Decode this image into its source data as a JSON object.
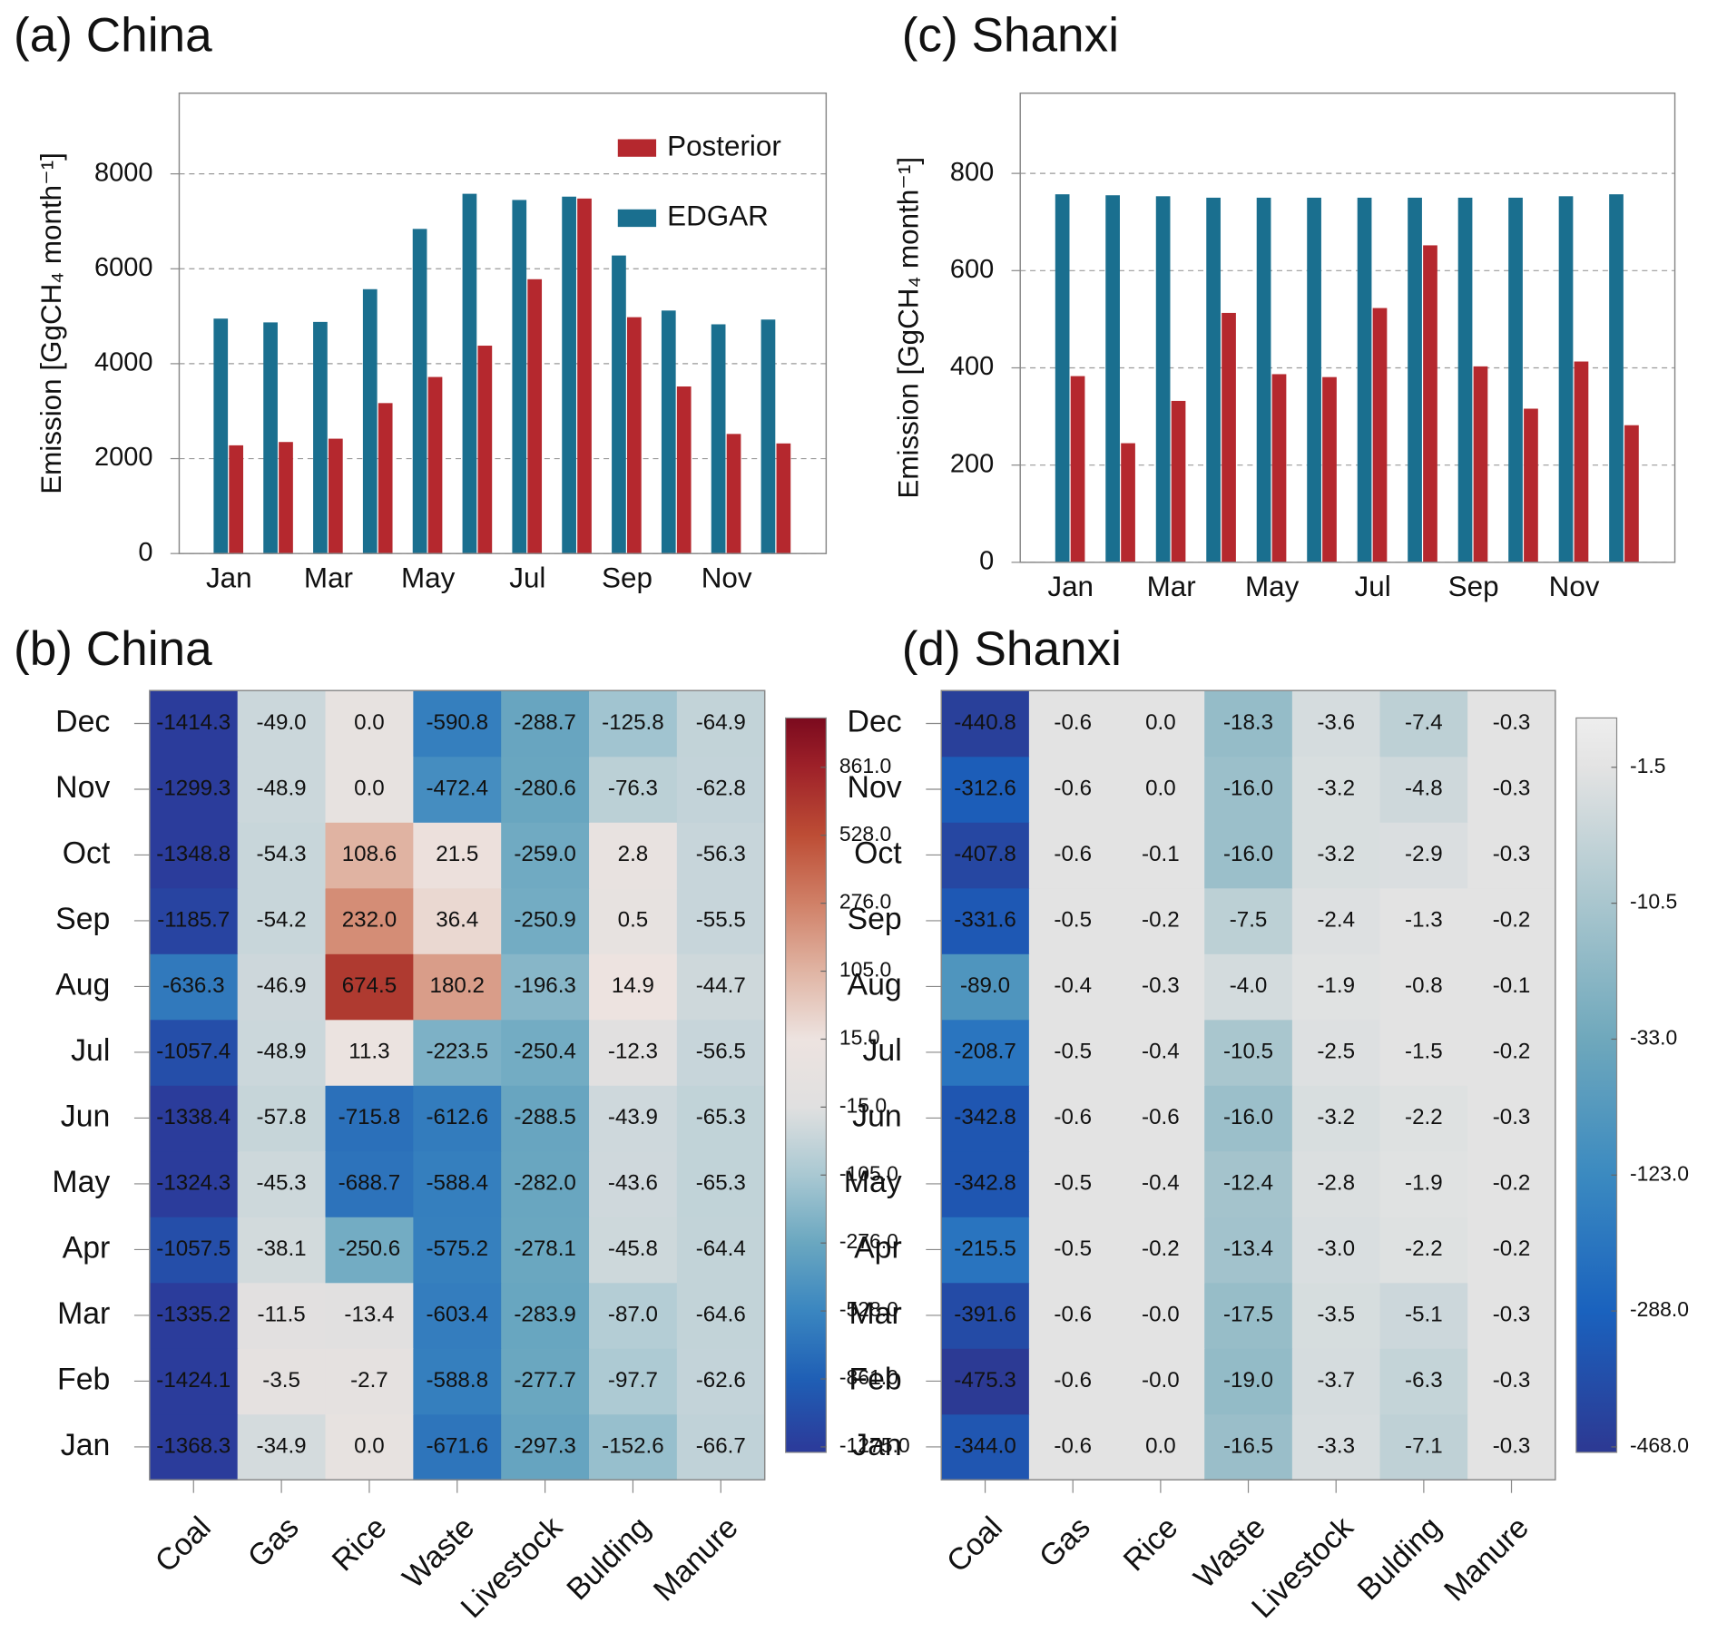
{
  "chart_data": [
    {
      "type": "bar",
      "title": "(a) China",
      "ylabel": "Emission [GgCH₄ month⁻¹]",
      "categories": [
        "Jan",
        null,
        "Mar",
        null,
        "May",
        null,
        "Jul",
        null,
        "Sep",
        null,
        "Nov",
        null
      ],
      "series": [
        {
          "name": "EDGAR",
          "color": "#1a6f8f",
          "values": [
            4950,
            4870,
            4880,
            5570,
            6840,
            7580,
            7450,
            7520,
            6280,
            5120,
            4830,
            4930
          ]
        },
        {
          "name": "Posterior",
          "color": "#b5282e",
          "values": [
            2280,
            2350,
            2420,
            3170,
            3720,
            4380,
            5780,
            7480,
            4980,
            3520,
            2520,
            2320
          ]
        }
      ],
      "ylim": [
        0,
        9700
      ],
      "yticks": [
        0,
        2000,
        4000,
        6000,
        8000
      ],
      "grid": true,
      "legend": "upper right"
    },
    {
      "type": "bar",
      "title": "(c) Shanxi",
      "ylabel": "Emission [GgCH₄ month⁻¹]",
      "categories": [
        "Jan",
        null,
        "Mar",
        null,
        "May",
        null,
        "Jul",
        null,
        "Sep",
        null,
        "Nov",
        null
      ],
      "series": [
        {
          "name": "EDGAR",
          "color": "#1a6f8f",
          "values": [
            757,
            755,
            753,
            750,
            750,
            750,
            750,
            750,
            750,
            750,
            753,
            757
          ]
        },
        {
          "name": "Posterior",
          "color": "#b5282e",
          "values": [
            383,
            245,
            332,
            513,
            387,
            381,
            523,
            652,
            403,
            316,
            413,
            282
          ]
        }
      ],
      "ylim": [
        0,
        965
      ],
      "yticks": [
        0,
        200,
        400,
        600,
        800
      ],
      "grid": true
    },
    {
      "type": "heatmap",
      "title": "(b) China",
      "categories": [
        "Coal",
        "Gas",
        "Rice",
        "Waste",
        "Livestock",
        "Bulding",
        "Manure"
      ],
      "rows": [
        "Jan",
        "Feb",
        "Mar",
        "Apr",
        "May",
        "Jun",
        "Jul",
        "Aug",
        "Sep",
        "Oct",
        "Nov",
        "Dec"
      ],
      "values": [
        [
          -1368.3,
          -34.9,
          0.0,
          -671.6,
          -297.3,
          -152.6,
          -66.7
        ],
        [
          -1424.1,
          -3.5,
          -2.7,
          -588.8,
          -277.7,
          -97.7,
          -62.6
        ],
        [
          -1335.2,
          -11.5,
          -13.4,
          -603.4,
          -283.9,
          -87.0,
          -64.6
        ],
        [
          -1057.5,
          -38.1,
          -250.6,
          -575.2,
          -278.1,
          -45.8,
          -64.4
        ],
        [
          -1324.3,
          -45.3,
          -688.7,
          -588.4,
          -282.0,
          -43.6,
          -65.3
        ],
        [
          -1338.4,
          -57.8,
          -715.8,
          -612.6,
          -288.5,
          -43.9,
          -65.3
        ],
        [
          -1057.4,
          -48.9,
          11.3,
          -223.5,
          -250.4,
          -12.3,
          -56.5
        ],
        [
          -636.3,
          -46.9,
          674.5,
          180.2,
          -196.3,
          14.9,
          -44.7
        ],
        [
          -1185.7,
          -54.2,
          232.0,
          36.4,
          -250.9,
          0.5,
          -55.5
        ],
        [
          -1348.8,
          -54.3,
          108.6,
          21.5,
          -259.0,
          2.8,
          -56.3
        ],
        [
          -1299.3,
          -48.9,
          0.0,
          -472.4,
          -280.6,
          -76.3,
          -62.8
        ],
        [
          -1414.3,
          -49.0,
          0.0,
          -590.8,
          -288.7,
          -125.8,
          -64.9
        ]
      ],
      "value_labels": [
        [
          "-1368.3",
          "-34.9",
          "0.0",
          "-671.6",
          "-297.3",
          "-152.6",
          "-66.7"
        ],
        [
          "-1424.1",
          "-3.5",
          "-2.7",
          "-588.8",
          "-277.7",
          "-97.7",
          "-62.6"
        ],
        [
          "-1335.2",
          "-11.5",
          "-13.4",
          "-603.4",
          "-283.9",
          "-87.0",
          "-64.6"
        ],
        [
          "-1057.5",
          "-38.1",
          "-250.6",
          "-575.2",
          "-278.1",
          "-45.8",
          "-64.4"
        ],
        [
          "-1324.3",
          "-45.3",
          "-688.7",
          "-588.4",
          "-282.0",
          "-43.6",
          "-65.3"
        ],
        [
          "-1338.4",
          "-57.8",
          "-715.8",
          "-612.6",
          "-288.5",
          "-43.9",
          "-65.3"
        ],
        [
          "-1057.4",
          "-48.9",
          "11.3",
          "-223.5",
          "-250.4",
          "-12.3",
          "-56.5"
        ],
        [
          "-636.3",
          "-46.9",
          "674.5",
          "180.2",
          "-196.3",
          "14.9",
          "-44.7"
        ],
        [
          "-1185.7",
          "-54.2",
          "232.0",
          "36.4",
          "-250.9",
          "0.5",
          "-55.5"
        ],
        [
          "-1348.8",
          "-54.3",
          "108.6",
          "21.5",
          "-259.0",
          "2.8",
          "-56.3"
        ],
        [
          "-1299.3",
          "-48.9",
          "0.0",
          "-472.4",
          "-280.6",
          "-76.3",
          "-62.8"
        ],
        [
          "-1414.3",
          "-49.0",
          "0.0",
          "-590.8",
          "-288.7",
          "-125.8",
          "-64.9"
        ]
      ],
      "colorbar_ticks": [
        {
          "value": -1275,
          "label": "-1275.0"
        },
        {
          "value": -861,
          "label": "-861.0"
        },
        {
          "value": -528,
          "label": "-528.0"
        },
        {
          "value": -276,
          "label": "-276.0"
        },
        {
          "value": -105,
          "label": "-105.0"
        },
        {
          "value": -15,
          "label": "-15.0"
        },
        {
          "value": 15,
          "label": "15.0"
        },
        {
          "value": 105,
          "label": "105.0"
        },
        {
          "value": 276,
          "label": "276.0"
        },
        {
          "value": 528,
          "label": "528.0"
        },
        {
          "value": 861,
          "label": "861.0"
        }
      ],
      "colorbar_colors": [
        "#2b3c9b",
        "#1f5fb5",
        "#3a86c0",
        "#6aa7c0",
        "#a9c8d2",
        "#e0e0e0",
        "#ede3e0",
        "#e0b4a3",
        "#d08067",
        "#bd4d35",
        "#9e2129",
        "#7b0a1e"
      ]
    },
    {
      "type": "heatmap",
      "title": "(d) Shanxi",
      "categories": [
        "Coal",
        "Gas",
        "Rice",
        "Waste",
        "Livestock",
        "Bulding",
        "Manure"
      ],
      "rows": [
        "Jan",
        "Feb",
        "Mar",
        "Apr",
        "May",
        "Jun",
        "Jul",
        "Aug",
        "Sep",
        "Oct",
        "Nov",
        "Dec"
      ],
      "values": [
        [
          -344.0,
          -0.6,
          0.0,
          -16.5,
          -3.3,
          -7.1,
          -0.3
        ],
        [
          -475.3,
          -0.6,
          -0.0,
          -19.0,
          -3.7,
          -6.3,
          -0.3
        ],
        [
          -391.6,
          -0.6,
          -0.0,
          -17.5,
          -3.5,
          -5.1,
          -0.3
        ],
        [
          -215.5,
          -0.5,
          -0.2,
          -13.4,
          -3.0,
          -2.2,
          -0.2
        ],
        [
          -342.8,
          -0.5,
          -0.4,
          -12.4,
          -2.8,
          -1.9,
          -0.2
        ],
        [
          -342.8,
          -0.6,
          -0.6,
          -16.0,
          -3.2,
          -2.2,
          -0.3
        ],
        [
          -208.7,
          -0.5,
          -0.4,
          -10.5,
          -2.5,
          -1.5,
          -0.2
        ],
        [
          -89.0,
          -0.4,
          -0.3,
          -4.0,
          -1.9,
          -0.8,
          -0.1
        ],
        [
          -331.6,
          -0.5,
          -0.2,
          -7.5,
          -2.4,
          -1.3,
          -0.2
        ],
        [
          -407.8,
          -0.6,
          -0.1,
          -16.0,
          -3.2,
          -2.9,
          -0.3
        ],
        [
          -312.6,
          -0.6,
          0.0,
          -16.0,
          -3.2,
          -4.8,
          -0.3
        ],
        [
          -440.8,
          -0.6,
          0.0,
          -18.3,
          -3.6,
          -7.4,
          -0.3
        ]
      ],
      "value_labels": [
        [
          "-344.0",
          "-0.6",
          "0.0",
          "-16.5",
          "-3.3",
          "-7.1",
          "-0.3"
        ],
        [
          "-475.3",
          "-0.6",
          "-0.0",
          "-19.0",
          "-3.7",
          "-6.3",
          "-0.3"
        ],
        [
          "-391.6",
          "-0.6",
          "-0.0",
          "-17.5",
          "-3.5",
          "-5.1",
          "-0.3"
        ],
        [
          "-215.5",
          "-0.5",
          "-0.2",
          "-13.4",
          "-3.0",
          "-2.2",
          "-0.2"
        ],
        [
          "-342.8",
          "-0.5",
          "-0.4",
          "-12.4",
          "-2.8",
          "-1.9",
          "-0.2"
        ],
        [
          "-342.8",
          "-0.6",
          "-0.6",
          "-16.0",
          "-3.2",
          "-2.2",
          "-0.3"
        ],
        [
          "-208.7",
          "-0.5",
          "-0.4",
          "-10.5",
          "-2.5",
          "-1.5",
          "-0.2"
        ],
        [
          "-89.0",
          "-0.4",
          "-0.3",
          "-4.0",
          "-1.9",
          "-0.8",
          "-0.1"
        ],
        [
          "-331.6",
          "-0.5",
          "-0.2",
          "-7.5",
          "-2.4",
          "-1.3",
          "-0.2"
        ],
        [
          "-407.8",
          "-0.6",
          "-0.1",
          "-16.0",
          "-3.2",
          "-2.9",
          "-0.3"
        ],
        [
          "-312.6",
          "-0.6",
          "0.0",
          "-16.0",
          "-3.2",
          "-4.8",
          "-0.3"
        ],
        [
          "-440.8",
          "-0.6",
          "0.0",
          "-18.3",
          "-3.6",
          "-7.4",
          "-0.3"
        ]
      ],
      "colorbar_ticks": [
        {
          "value": -468,
          "label": "-468.0"
        },
        {
          "value": -288,
          "label": "-288.0"
        },
        {
          "value": -123,
          "label": "-123.0"
        },
        {
          "value": -33,
          "label": "-33.0"
        },
        {
          "value": -10.5,
          "label": "-10.5"
        },
        {
          "value": -1.5,
          "label": "-1.5"
        }
      ],
      "colorbar_colors": [
        "#2c3a94",
        "#1a62be",
        "#3b8ac0",
        "#6fa8bc",
        "#a9c6ce",
        "#e3e3e3",
        "#eeeeee"
      ]
    }
  ]
}
